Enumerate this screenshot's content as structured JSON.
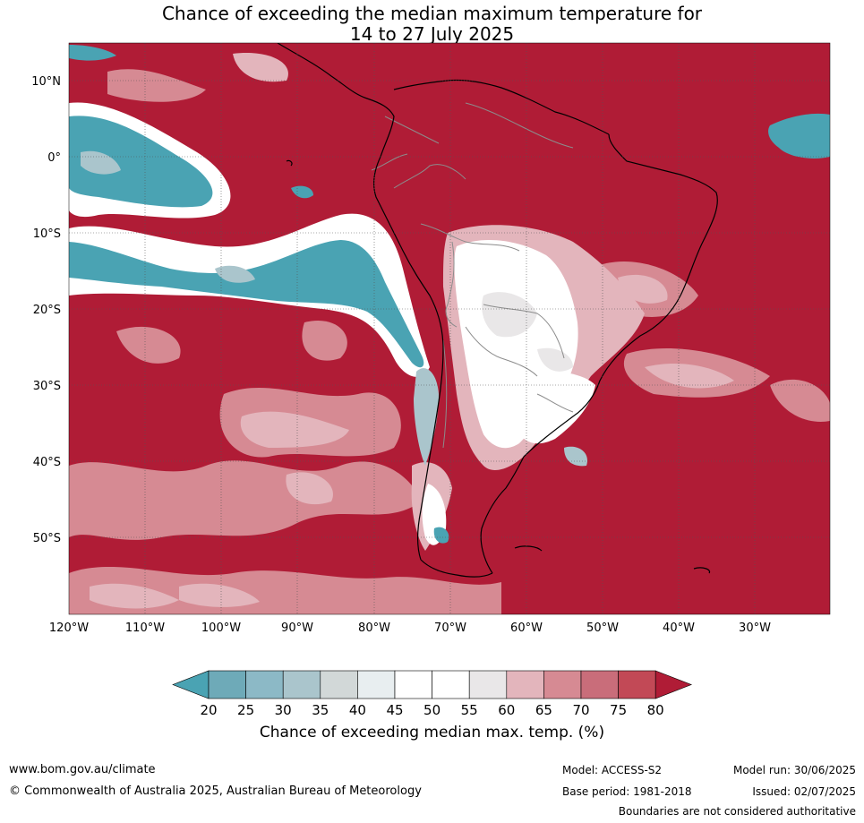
{
  "title": {
    "line1": "Chance of exceeding the median maximum temperature for",
    "line2": "14 to 27 July 2025"
  },
  "map": {
    "lon_labels": [
      "120°W",
      "110°W",
      "100°W",
      "90°W",
      "80°W",
      "70°W",
      "60°W",
      "50°W",
      "40°W",
      "30°W"
    ],
    "lat_labels": [
      "10°N",
      "0°",
      "10°S",
      "20°S",
      "30°S",
      "40°S",
      "50°S"
    ],
    "region": "South America and surrounding oceans"
  },
  "colorbar": {
    "ticks": [
      "20",
      "25",
      "30",
      "35",
      "40",
      "45",
      "50",
      "55",
      "60",
      "65",
      "70",
      "75",
      "80"
    ],
    "colors": [
      "#4aa3b3",
      "#6eaab8",
      "#8cb9c6",
      "#aac5cc",
      "#d2d8d8",
      "#e8eef0",
      "#ffffff",
      "#ffffff",
      "#e9e7e8",
      "#e3b5bc",
      "#d68a93",
      "#c96d7a",
      "#c24956",
      "#b01c36"
    ],
    "title": "Chance of exceeding median max. temp. (%)"
  },
  "footer": {
    "website": "www.bom.gov.au/climate",
    "copyright": "© Commonwealth of Australia 2025, Australian Bureau of Meteorology",
    "model": "Model: ACCESS-S2",
    "base_period": "Base period: 1981-2018",
    "model_run": "Model run: 30/06/2025",
    "issued": "Issued: 02/07/2025",
    "disclaimer": "Boundaries are not considered authoritative"
  },
  "palette": {
    "high": "#b01c36",
    "mid_pink": "#d68a93",
    "light_pink": "#e3b5bc",
    "white": "#ffffff",
    "teal": "#4aa3b3",
    "light_teal": "#aac5cc"
  }
}
